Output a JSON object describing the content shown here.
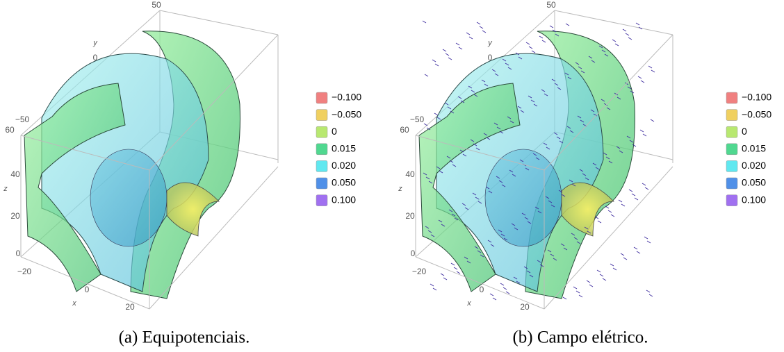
{
  "panels": [
    {
      "caption": "(a) Equipotenciais.",
      "axes": {
        "y_label": "y",
        "y_ticks": [
          "50",
          "0",
          "−50"
        ],
        "z_label": "z",
        "z_ticks": [
          "60",
          "40",
          "20",
          "0"
        ],
        "x_label": "x",
        "x_ticks": [
          "−20",
          "0",
          "20"
        ]
      },
      "legend": [
        "−0.100",
        "−0.050",
        "0",
        "0.015",
        "0.020",
        "0.050",
        "0.100"
      ]
    },
    {
      "caption": "(b) Campo elétrico.",
      "axes": {
        "y_label": "y",
        "y_ticks": [
          "50",
          "0",
          "−50"
        ],
        "z_label": "z",
        "z_ticks": [
          "60",
          "40",
          "20",
          "0"
        ],
        "x_label": "x",
        "x_ticks": [
          "−20",
          "0",
          "20"
        ]
      },
      "legend": [
        "−0.100",
        "−0.050",
        "0",
        "0.015",
        "0.020",
        "0.050",
        "0.100"
      ]
    }
  ]
}
